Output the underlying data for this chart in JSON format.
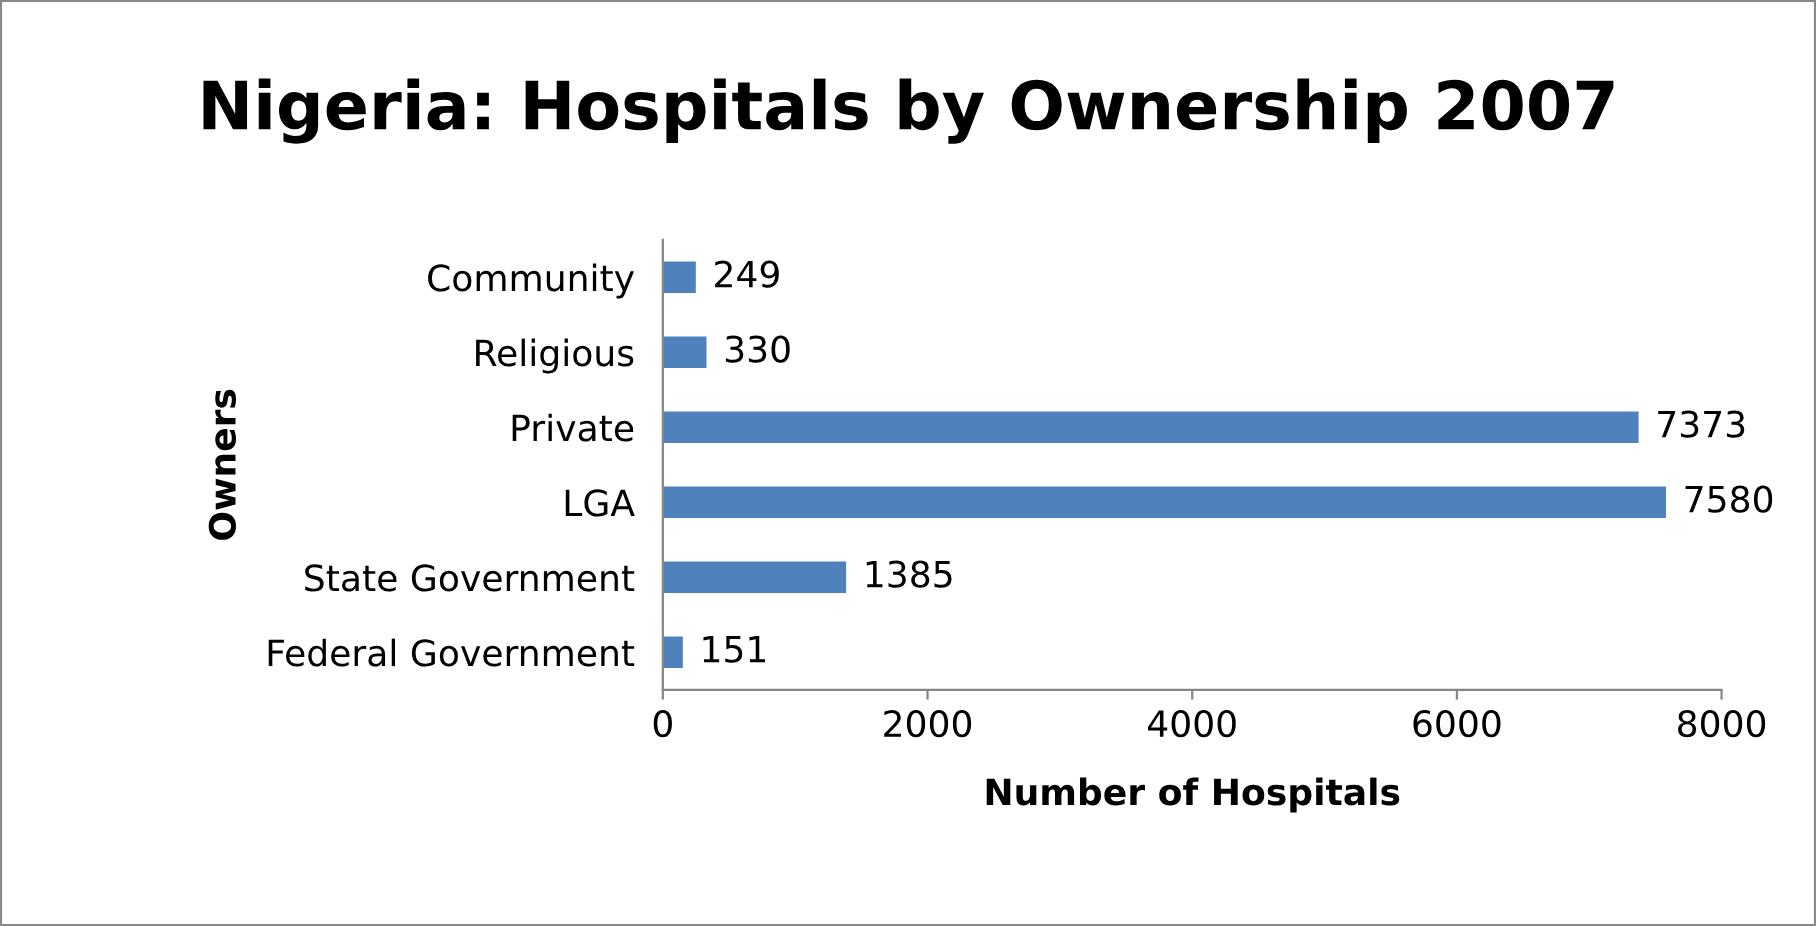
{
  "chart_data": {
    "type": "bar",
    "orientation": "horizontal",
    "title": "Nigeria: Hospitals by Ownership 2007",
    "xlabel": "Number of Hospitals",
    "ylabel": "Owners",
    "categories": [
      "Community",
      "Religious",
      "Private",
      "LGA",
      "State Government",
      "Federal Government"
    ],
    "values": [
      249,
      330,
      7373,
      7580,
      1385,
      151
    ],
    "color": "#4f81bd",
    "xlim": [
      0,
      8000
    ],
    "xticks": [
      0,
      2000,
      4000,
      6000,
      8000
    ],
    "grid": false,
    "legend": false,
    "data_labels": true
  }
}
